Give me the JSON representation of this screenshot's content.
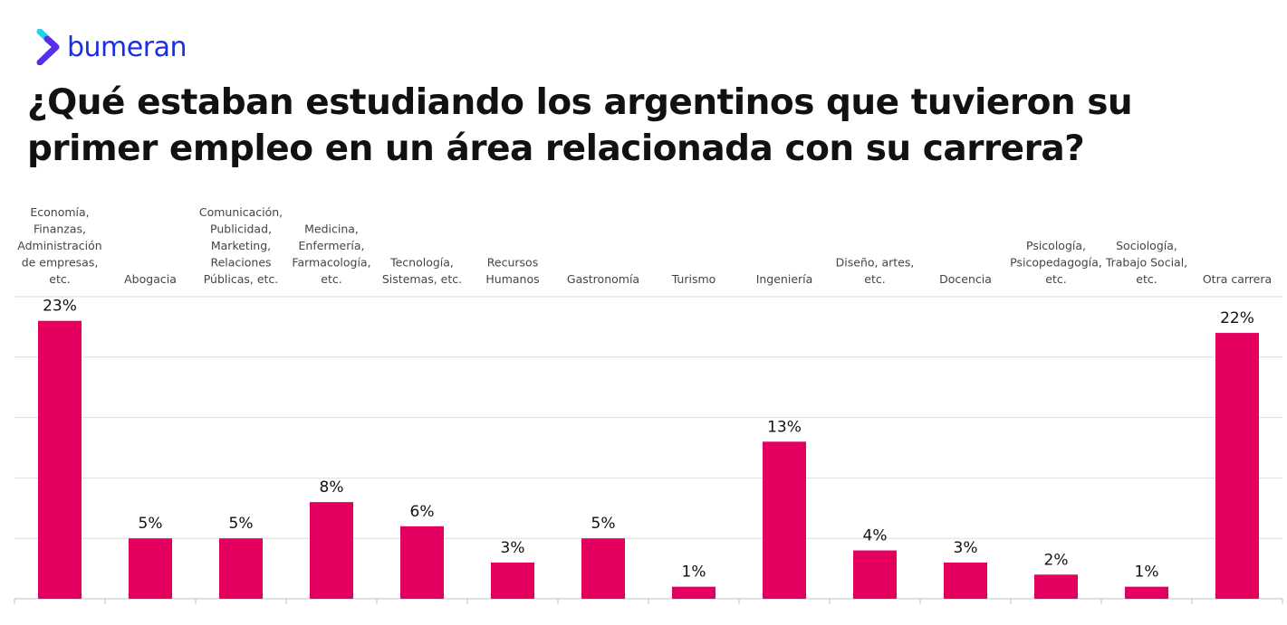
{
  "brand": {
    "name": "bumeran",
    "color": "#1a30e0",
    "accent": "#22d3ee"
  },
  "chart_data": {
    "type": "bar",
    "title": "¿Qué estaban estudiando los argentinos que tuvieron su primer empleo en un área relacionada con su carrera?",
    "categories": [
      "Economía, Finanzas, Administración de empresas, etc.",
      "Abogacia",
      "Comunicación, Publicidad, Marketing, Relaciones Públicas, etc.",
      "Medicina, Enfermería, Farmacología, etc.",
      "Tecnología, Sistemas, etc.",
      "Recursos Humanos",
      "Gastronomía",
      "Turismo",
      "Ingeniería",
      "Diseño, artes, etc.",
      "Docencia",
      "Psicología, Psicopedagogía, etc.",
      "Sociología, Trabajo Social, etc.",
      "Otra carrera"
    ],
    "category_label_lines": [
      [
        "Economía,",
        "Finanzas,",
        "Administración",
        "de empresas,",
        "etc."
      ],
      [
        "Abogacia"
      ],
      [
        "Comunicación,",
        "Publicidad,",
        "Marketing,",
        "Relaciones",
        "Públicas, etc."
      ],
      [
        "Medicina,",
        "Enfermería,",
        "Farmacología,",
        "etc."
      ],
      [
        "Tecnología,",
        "Sistemas, etc."
      ],
      [
        "Recursos",
        "Humanos"
      ],
      [
        "Gastronomía"
      ],
      [
        "Turismo"
      ],
      [
        "Ingeniería"
      ],
      [
        "Diseño, artes,",
        "etc."
      ],
      [
        "Docencia"
      ],
      [
        "Psicología,",
        "Psicopedagogía,",
        "etc."
      ],
      [
        "Sociología,",
        "Trabajo Social,",
        "etc."
      ],
      [
        "Otra carrera"
      ]
    ],
    "values": [
      23,
      5,
      5,
      8,
      6,
      3,
      5,
      1,
      13,
      4,
      3,
      2,
      1,
      22
    ],
    "value_labels": [
      "23%",
      "5%",
      "5%",
      "8%",
      "6%",
      "3%",
      "5%",
      "1%",
      "13%",
      "4%",
      "3%",
      "2%",
      "1%",
      "22%"
    ],
    "unit": "%",
    "ylim": [
      0,
      25
    ],
    "grid": true,
    "bar_color": "#e5005f"
  }
}
